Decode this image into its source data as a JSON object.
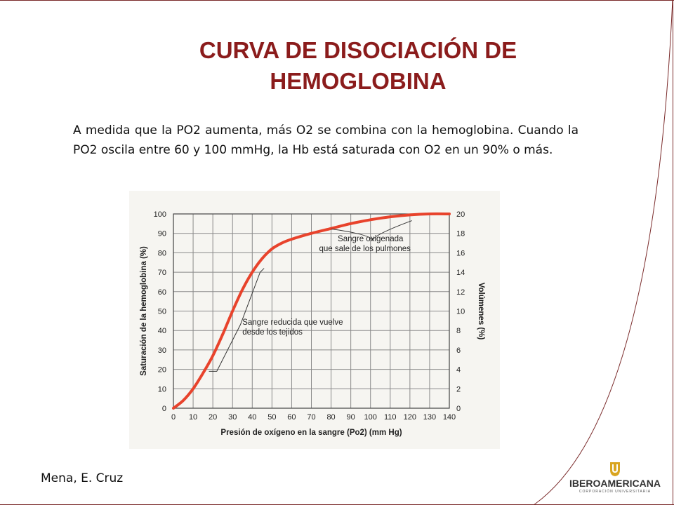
{
  "slide": {
    "title_line1": "CURVA DE DISOCIACIÓN DE",
    "title_line2": "HEMOGLOBINA",
    "body": "A  medida que la PO2 aumenta, más O2 se combina con la hemoglobina. Cuando la PO2 oscila entre 60 y 100 mmHg, la Hb está saturada con O2 en un 90% o más.",
    "citation": "Mena, E. Cruz",
    "logo_text": "IBEROAMERICANA",
    "logo_subtext": "CORPORACIÓN UNIVERSITARIA",
    "title_color": "#8b1c1c",
    "frame_color": "#7a2a2a"
  },
  "chart_data": {
    "type": "line",
    "xlabel": "Presión de oxígeno en la sangre (Po2) (mm Hg)",
    "ylabel": "Saturación de la hemoglobina (%)",
    "y2label": "Volúmenes (%)",
    "xlim": [
      0,
      140
    ],
    "ylim": [
      0,
      100
    ],
    "y2lim": [
      0,
      20
    ],
    "x_ticks": [
      0,
      10,
      20,
      30,
      40,
      50,
      60,
      70,
      80,
      90,
      100,
      110,
      120,
      130,
      140
    ],
    "y_ticks": [
      0,
      10,
      20,
      30,
      40,
      50,
      60,
      70,
      80,
      90,
      100
    ],
    "y2_ticks": [
      0,
      2,
      4,
      6,
      8,
      10,
      12,
      14,
      16,
      18,
      20
    ],
    "grid": true,
    "line_color": "#e8432c",
    "series": [
      {
        "x": [
          0,
          5,
          10,
          15,
          20,
          25,
          30,
          35,
          40,
          45,
          50,
          55,
          60,
          70,
          80,
          90,
          100,
          110,
          120,
          130,
          140
        ],
        "y": [
          0,
          4,
          10,
          18,
          27,
          38,
          50,
          61,
          70,
          77,
          82,
          85,
          87,
          90,
          92.5,
          95,
          97,
          98.5,
          99.5,
          100,
          100
        ]
      }
    ],
    "annotations": [
      {
        "text_line1": "Sangre oxigenada",
        "text_line2": "que sale de los pulmones",
        "x": 100,
        "y": 86
      },
      {
        "text_line1": "Sangre reducida que vuelve",
        "text_line2": "desde los tejidos",
        "x": 35,
        "y": 43
      }
    ]
  }
}
